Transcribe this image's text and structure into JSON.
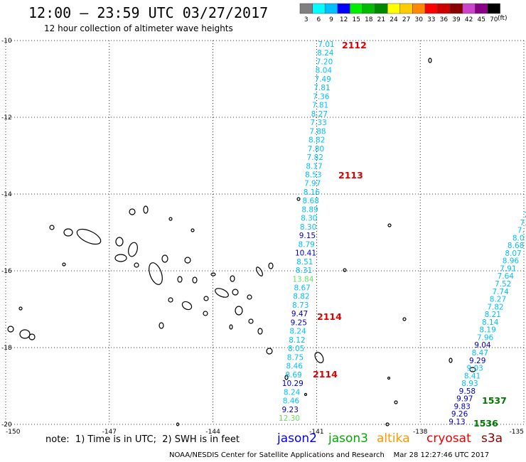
{
  "header": {
    "title": "12:00 – 23:59 UTC 03/27/2017",
    "subtitle": "12 hour collection of altimeter wave heights"
  },
  "legend": {
    "units": "(ft)",
    "bins": [
      {
        "label": "3",
        "color": "#7f7f7f"
      },
      {
        "label": "6",
        "color": "#00ffff"
      },
      {
        "label": "9",
        "color": "#00bfff"
      },
      {
        "label": "12",
        "color": "#0000ff"
      },
      {
        "label": "15",
        "color": "#00ee00"
      },
      {
        "label": "18",
        "color": "#00bb00"
      },
      {
        "label": "21",
        "color": "#008800"
      },
      {
        "label": "24",
        "color": "#ffff00"
      },
      {
        "label": "27",
        "color": "#ffcc00"
      },
      {
        "label": "30",
        "color": "#ff8800"
      },
      {
        "label": "33",
        "color": "#ff0000"
      },
      {
        "label": "36",
        "color": "#cc0000"
      },
      {
        "label": "39",
        "color": "#880000"
      },
      {
        "label": "42",
        "color": "#cc44cc"
      },
      {
        "label": "45",
        "color": "#880088"
      },
      {
        "label": "70",
        "color": "#000000"
      }
    ]
  },
  "axes": {
    "lat_labels": [
      "-10",
      "-12",
      "-14",
      "-16",
      "-18",
      "-20"
    ],
    "lon_labels": [
      "-150",
      "-147",
      "-144",
      "-141",
      "-138",
      "-135"
    ]
  },
  "tracks": [
    {
      "name": "main",
      "values": [
        "7.01",
        "8.24",
        "7.20",
        "8.04",
        "7.49",
        "7.81",
        "7.36",
        "7.81",
        "8.27",
        "7.33",
        "7.88",
        "8.82",
        "7.80",
        "7.82",
        "8.17",
        "8.53",
        "7.97",
        "8.16",
        "8.68",
        "8.89",
        "8.30",
        "8.30",
        "9.15",
        "8.79",
        "10.41",
        "8.51",
        "8.31",
        "13.84",
        "8.67",
        "8.82",
        "8.73",
        "9.47",
        "9.25",
        "8.24",
        "8.12",
        "8.05",
        "8.75",
        "8.46",
        "8.69",
        "10.29",
        "8.24",
        "8.46",
        "9.23",
        "12.30"
      ],
      "colors": [
        "#00bfff",
        "#00bfff",
        "#00bfff",
        "#00bfff",
        "#00bfff",
        "#00bfff",
        "#00bfff",
        "#00bfff",
        "#00bfff",
        "#00bfff",
        "#00bfff",
        "#00bfff",
        "#00bfff",
        "#00bfff",
        "#00bfff",
        "#00bfff",
        "#00bfff",
        "#00bfff",
        "#00bfff",
        "#00bfff",
        "#00bfff",
        "#00bfff",
        "#0000cc",
        "#00bfff",
        "#0000cc",
        "#00bfff",
        "#00bfff",
        "#66dd66",
        "#00bfff",
        "#00bfff",
        "#00bfff",
        "#0000cc",
        "#0000cc",
        "#00bfff",
        "#00bfff",
        "#00bfff",
        "#00bfff",
        "#00bfff",
        "#00bfff",
        "#0000cc",
        "#00bfff",
        "#00bfff",
        "#0000cc",
        "#66dd66"
      ]
    },
    {
      "name": "right",
      "values": [
        "7",
        "7.",
        "7.",
        "8.0",
        "8.68",
        "8.07",
        "8.96",
        "7.91",
        "7.64",
        "7.52",
        "7.74",
        "8.27",
        "7.82",
        "8.21",
        "8.14",
        "8.19",
        "7.96",
        "9.04",
        "8.47",
        "9.29",
        "9.03",
        "8.41",
        "8.93",
        "9.58",
        "9.97",
        "9.83",
        "9.26",
        "9.13"
      ],
      "colors": [
        "#00bfff",
        "#00bfff",
        "#00bfff",
        "#00bfff",
        "#00bfff",
        "#00bfff",
        "#00bfff",
        "#00bfff",
        "#00bfff",
        "#00bfff",
        "#00bfff",
        "#00bfff",
        "#00bfff",
        "#00bfff",
        "#00bfff",
        "#00bfff",
        "#00bfff",
        "#0000cc",
        "#00bfff",
        "#0000cc",
        "#00bfff",
        "#00bfff",
        "#00bfff",
        "#0000cc",
        "#0000cc",
        "#0000cc",
        "#0000cc",
        "#0000cc"
      ]
    }
  ],
  "time_labels": [
    {
      "text": "2112",
      "color": "#dd0000"
    },
    {
      "text": "2113",
      "color": "#dd0000"
    },
    {
      "text": "2114",
      "color": "#dd0000"
    },
    {
      "text": "2114",
      "color": "#dd0000"
    },
    {
      "text": "1537",
      "color": "#007700"
    },
    {
      "text": "1536",
      "color": "#007700"
    }
  ],
  "footer": {
    "note": "note:  1) Time is in UTC;  2) SWH is in feet",
    "satellites": [
      {
        "name": "jason2",
        "color": "#0000ff"
      },
      {
        "name": "jason3",
        "color": "#00aa00"
      },
      {
        "name": "altika",
        "color": "#ff9900"
      },
      {
        "name": "cryosat",
        "color": "#ee0000"
      },
      {
        "name": "s3a",
        "color": "#880000"
      }
    ],
    "credit": "NOAA/NESDIS Center for Satellite Applications and Research    Mar 28 12:27:46 UTC 2017"
  }
}
